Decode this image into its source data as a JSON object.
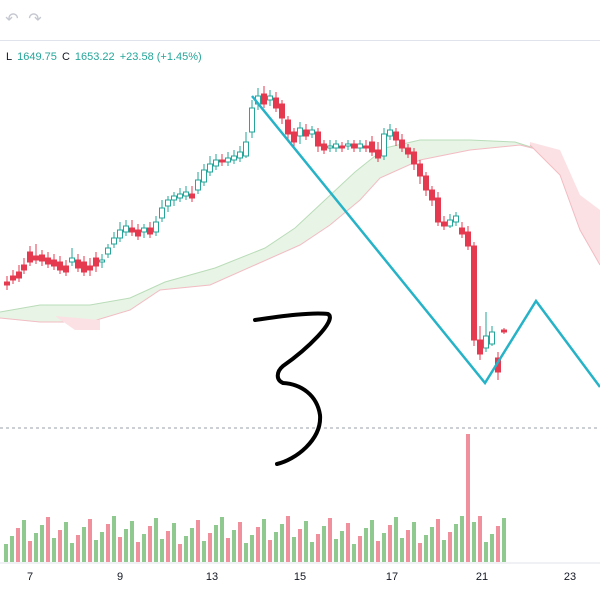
{
  "toolbar": {
    "undo_icon": "undo-icon",
    "redo_icon": "redo-icon"
  },
  "legend": {
    "low_key": "L",
    "low_value": "1649.75",
    "close_key": "C",
    "close_value": "1653.22",
    "change": "+23.58 (+1.45%)"
  },
  "colors": {
    "up": "#26a69a",
    "down": "#e53950",
    "vol_up": "#8fc98f",
    "vol_down": "#f0909c",
    "cloud_up": "#e8f4e6",
    "cloud_down": "#fbe1e4",
    "drawing_line": "#27b3c7",
    "annotation": "#000000"
  },
  "chart_data": {
    "type": "candlestick",
    "x_tick_labels": [
      "7",
      "9",
      "13",
      "15",
      "17",
      "21",
      "23"
    ],
    "annotations": [
      "3"
    ],
    "overlays": [
      "ichimoku-cloud",
      "trend-lines",
      "volume-bars"
    ]
  }
}
